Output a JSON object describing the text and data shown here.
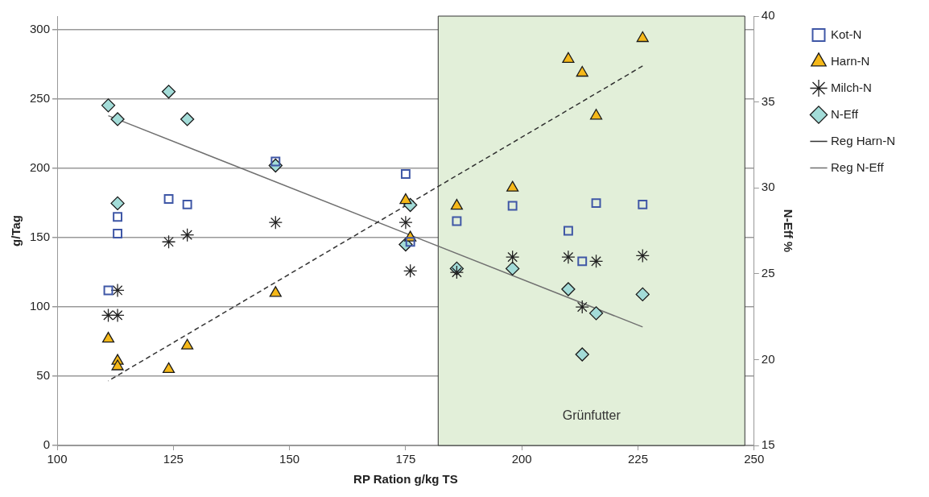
{
  "chart_data": {
    "type": "scatter",
    "xlabel": "RP Ration g/kg TS",
    "ylabel": "g/Tag",
    "y2label": "N-Eff %",
    "xlim": [
      100,
      250
    ],
    "xticks": [
      100,
      125,
      150,
      175,
      200,
      225,
      250
    ],
    "ylim": [
      0,
      310
    ],
    "yticks": [
      0,
      50,
      100,
      150,
      200,
      250,
      300
    ],
    "y2lim": [
      15,
      40
    ],
    "y2ticks": [
      15,
      20,
      25,
      30,
      35,
      40
    ],
    "grid": "y",
    "legend": "top right",
    "bands": [
      {
        "axis": "x",
        "from": 182,
        "to": 248,
        "label": "Grünfutter",
        "color": "#e2efd9"
      }
    ],
    "series": [
      {
        "name": "Kot-N",
        "type": "scatter",
        "marker": "square",
        "color": "#3f57a6",
        "x": [
          111,
          113,
          113,
          124,
          128,
          147,
          175,
          176,
          186,
          198,
          210,
          213,
          216,
          226
        ],
        "values": [
          112,
          165,
          153,
          178,
          174,
          205,
          196,
          147,
          162,
          173,
          155,
          133,
          175,
          174
        ]
      },
      {
        "name": "Harn-N",
        "type": "scatter",
        "marker": "triangle",
        "color": "#f5b819",
        "x": [
          111,
          113,
          113,
          124,
          128,
          147,
          175,
          176,
          186,
          198,
          210,
          213,
          216,
          226
        ],
        "values": [
          77,
          61,
          57,
          55,
          72,
          110,
          177,
          150,
          173,
          186,
          279,
          269,
          238,
          294
        ]
      },
      {
        "name": "Milch-N",
        "type": "scatter",
        "marker": "cross",
        "color": "#222222",
        "x": [
          111,
          113,
          113,
          124,
          128,
          147,
          175,
          176,
          186,
          198,
          210,
          213,
          216,
          226
        ],
        "values": [
          94,
          94,
          112,
          147,
          152,
          161,
          161,
          126,
          125,
          136,
          136,
          100,
          133,
          137
        ]
      },
      {
        "name": "N-Eff",
        "type": "scatter",
        "marker": "diamond",
        "color": "#a3dcd8",
        "axis": "y2",
        "x": [
          111,
          113,
          113,
          124,
          128,
          147,
          175,
          176,
          186,
          198,
          210,
          213,
          216,
          226
        ],
        "values": [
          34.8,
          34.0,
          29.1,
          35.6,
          34.0,
          31.3,
          26.7,
          29.0,
          25.3,
          25.3,
          24.1,
          20.3,
          22.7,
          23.8
        ]
      },
      {
        "name": "Reg Harn-N",
        "type": "line",
        "marker": "none",
        "line_style": "dashed",
        "color": "#333333",
        "x": [
          226,
          111
        ],
        "values": [
          274,
          46.6
        ]
      },
      {
        "name": "Reg N-Eff",
        "type": "line",
        "marker": "none",
        "line_style": "solid",
        "color": "#707070",
        "axis": "y2",
        "x": [
          111,
          226
        ],
        "values": [
          34.2,
          21.9
        ]
      }
    ]
  }
}
